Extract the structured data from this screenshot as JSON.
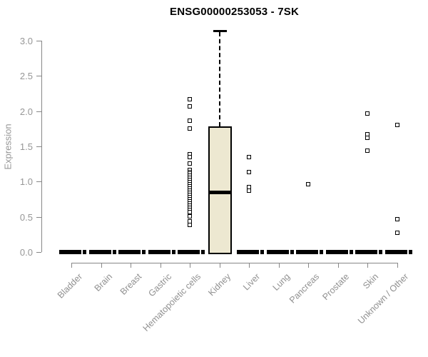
{
  "chart_data": {
    "type": "boxplot",
    "title": "ENSG00000253053 - 7SK",
    "xlabel": "",
    "ylabel": "Expression",
    "ylim": [
      0,
      3.2
    ],
    "yticks": [
      "0.0",
      "0.5",
      "1.0",
      "1.5",
      "2.0",
      "2.5",
      "3.0"
    ],
    "ytick_values": [
      0.0,
      0.5,
      1.0,
      1.5,
      2.0,
      2.5,
      3.0
    ],
    "grid": false,
    "legend": false,
    "categories": [
      "Bladder",
      "Brain",
      "Breast",
      "Gastric",
      "Hematopoietic cells",
      "Kidney",
      "Liver",
      "Lung",
      "Pancreas",
      "Prostate",
      "Skin",
      "Unknown / Other"
    ],
    "boxes": [
      {
        "category": "Bladder",
        "q1": 0,
        "median": 0,
        "q3": 0,
        "whisker_low": 0,
        "whisker_high": 0,
        "outliers": []
      },
      {
        "category": "Brain",
        "q1": 0,
        "median": 0,
        "q3": 0,
        "whisker_low": 0,
        "whisker_high": 0,
        "outliers": []
      },
      {
        "category": "Breast",
        "q1": 0,
        "median": 0,
        "q3": 0,
        "whisker_low": 0,
        "whisker_high": 0,
        "outliers": []
      },
      {
        "category": "Gastric",
        "q1": 0,
        "median": 0,
        "q3": 0,
        "whisker_low": 0,
        "whisker_high": 0,
        "outliers": []
      },
      {
        "category": "Hematopoietic cells",
        "q1": 0,
        "median": 0,
        "q3": 0,
        "whisker_low": 0,
        "whisker_high": 0,
        "outliers": [
          2.17,
          2.07,
          1.86,
          1.75,
          1.39,
          1.35,
          1.26,
          1.17,
          1.14,
          1.11,
          1.08,
          1.05,
          1.02,
          0.99,
          0.96,
          0.93,
          0.9,
          0.87,
          0.84,
          0.81,
          0.78,
          0.75,
          0.72,
          0.69,
          0.66,
          0.63,
          0.6,
          0.57,
          0.51,
          0.44,
          0.39
        ]
      },
      {
        "category": "Kidney",
        "q1": 0.0,
        "median": 0.85,
        "q3": 1.78,
        "whisker_low": 0.0,
        "whisker_high": 3.14,
        "outliers": []
      },
      {
        "category": "Liver",
        "q1": 0,
        "median": 0,
        "q3": 0,
        "whisker_low": 0,
        "whisker_high": 0,
        "outliers": [
          1.35,
          1.14,
          0.92,
          0.87
        ]
      },
      {
        "category": "Lung",
        "q1": 0,
        "median": 0,
        "q3": 0,
        "whisker_low": 0,
        "whisker_high": 0,
        "outliers": []
      },
      {
        "category": "Pancreas",
        "q1": 0,
        "median": 0,
        "q3": 0,
        "whisker_low": 0,
        "whisker_high": 0,
        "outliers": [
          0.96
        ]
      },
      {
        "category": "Prostate",
        "q1": 0,
        "median": 0,
        "q3": 0,
        "whisker_low": 0,
        "whisker_high": 0,
        "outliers": []
      },
      {
        "category": "Skin",
        "q1": 0,
        "median": 0,
        "q3": 0,
        "whisker_low": 0,
        "whisker_high": 0,
        "outliers": [
          1.97,
          1.67,
          1.62,
          1.44
        ]
      },
      {
        "category": "Unknown / Other",
        "q1": 0,
        "median": 0,
        "q3": 0,
        "whisker_low": 0,
        "whisker_high": 0,
        "outliers": [
          1.8,
          0.47,
          0.27
        ]
      }
    ],
    "colors": {
      "box_fill": "#EDE8D1",
      "box_border": "#000000",
      "median": "#000000",
      "whisker": "#000000",
      "outlier": "#000000",
      "axis_line": "#878787",
      "tick_label": "#969696",
      "category_label": "#909090",
      "title": "#000000",
      "background": "#FFFFFF"
    }
  }
}
